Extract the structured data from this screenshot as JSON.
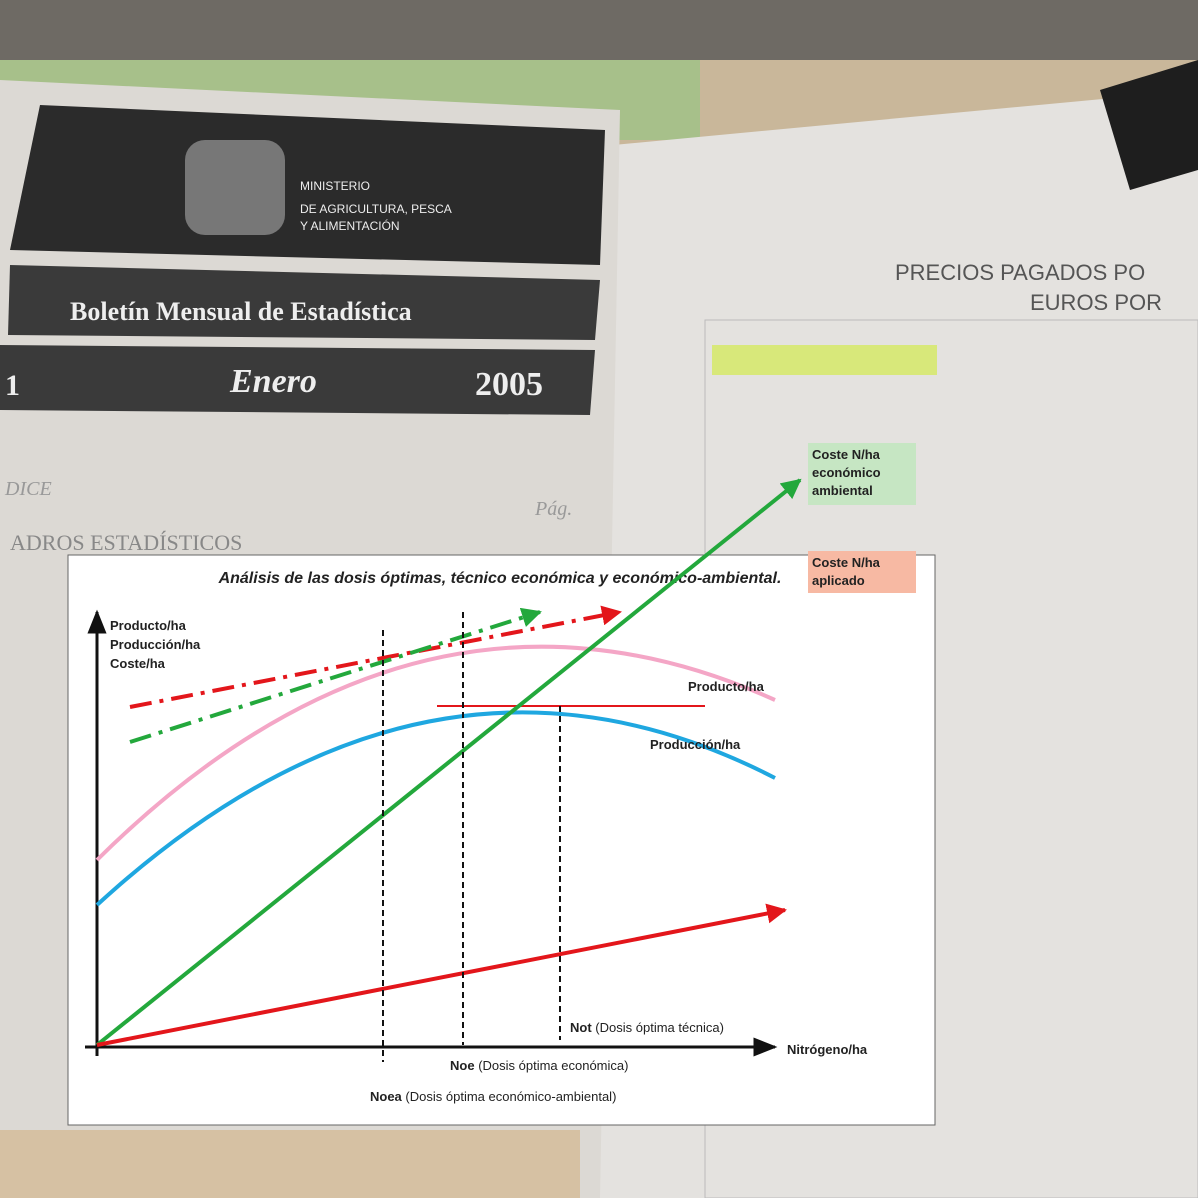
{
  "photo": {
    "ministry": [
      "MINISTERIO",
      "DE AGRICULTURA, PESCA",
      "Y ALIMENTACIÓN"
    ],
    "bulletin": "Boletín Mensual de Estadística",
    "month": "Enero",
    "year": "2005",
    "issue": "1",
    "index": "DICE",
    "page": "Pág.",
    "section": "ADROS ESTADÍSTICOS",
    "table_title": [
      "PRECIOS PAGADOS PO",
      "EUROS POR"
    ]
  },
  "diagram": {
    "title": "Análisis de las dosis óptimas, técnico económica y económico-ambiental.",
    "y_axis_label": [
      "Producto/ha",
      "Producción/ha",
      "Coste/ha"
    ],
    "x_axis_label": "Nitrógeno/ha",
    "curve_product": "Producto/ha",
    "curve_production": "Producción/ha",
    "cost_env": [
      "Coste N/ha",
      "económico",
      "ambiental"
    ],
    "cost_applied": [
      "Coste N/ha",
      "aplicado"
    ],
    "not": {
      "abbr": "Not",
      "text": "(Dosis óptima técnica)"
    },
    "noe": {
      "abbr": "Noe",
      "text": "(Dosis óptima económica)"
    },
    "noea": {
      "abbr": "Noea",
      "text": "(Dosis óptima económico-ambiental)"
    }
  }
}
